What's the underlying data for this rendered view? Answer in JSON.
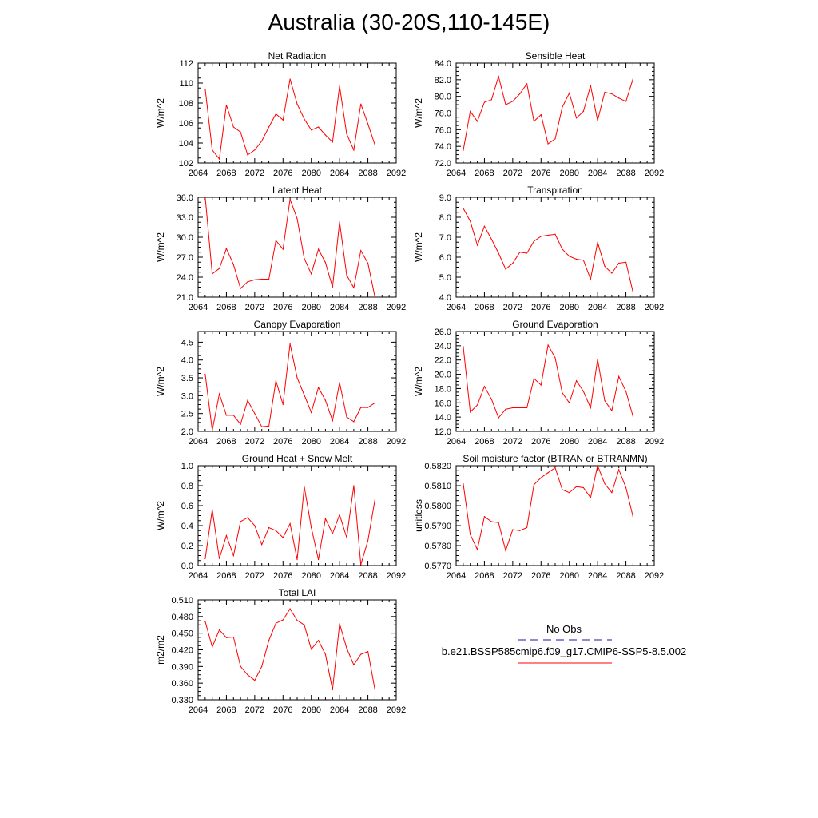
{
  "figure_title": "Australia (30-20S,110-145E)",
  "legend": {
    "entries": [
      {
        "label": "No Obs",
        "color": "#1a1aa0",
        "dash": "dashed"
      },
      {
        "label": "b.e21.BSSP585cmip6.f09_g17.CMIP6-SSP5-8.5.002",
        "color": "#ff0000",
        "dash": "solid"
      }
    ]
  },
  "chart_data": [
    {
      "type": "line",
      "title": "Net Radiation",
      "ylabel": "W/m^2",
      "xlabel": "",
      "xlim": [
        2064,
        2092
      ],
      "ylim": [
        102,
        112
      ],
      "xticks": [
        2064,
        2068,
        2072,
        2076,
        2080,
        2084,
        2088,
        2092
      ],
      "xtick_labels": [
        "2064",
        "2068",
        "2072",
        "2076",
        "2080",
        "2084",
        "2088",
        "2092"
      ],
      "yticks": [
        102,
        104,
        106,
        108,
        110,
        112
      ],
      "ytick_labels": [
        "102",
        "104",
        "106",
        "108",
        "110",
        "112"
      ],
      "series": [
        {
          "color": "#ff0000",
          "x": [
            2065,
            2066,
            2067,
            2068,
            2069,
            2070,
            2071,
            2072,
            2073,
            2074,
            2075,
            2076,
            2077,
            2078,
            2079,
            2080,
            2081,
            2082,
            2083,
            2084,
            2085,
            2086,
            2087,
            2088,
            2089
          ],
          "y": [
            109.4,
            103.3,
            102.4,
            107.8,
            105.6,
            105.1,
            102.8,
            103.3,
            104.2,
            105.6,
            106.9,
            106.3,
            110.4,
            107.9,
            106.4,
            105.3,
            105.6,
            104.8,
            104.1,
            109.7,
            104.9,
            103.3,
            107.9,
            105.9,
            103.8
          ]
        }
      ]
    },
    {
      "type": "line",
      "title": "Sensible Heat",
      "ylabel": "W/m^2",
      "xlabel": "",
      "xlim": [
        2064,
        2092
      ],
      "ylim": [
        72,
        84
      ],
      "xticks": [
        2064,
        2068,
        2072,
        2076,
        2080,
        2084,
        2088,
        2092
      ],
      "xtick_labels": [
        "2064",
        "2068",
        "2072",
        "2076",
        "2080",
        "2084",
        "2088",
        "2092"
      ],
      "yticks": [
        72,
        74,
        76,
        78,
        80,
        82,
        84
      ],
      "ytick_labels": [
        "72.0",
        "74.0",
        "76.0",
        "78.0",
        "80.0",
        "82.0",
        "84.0"
      ],
      "series": [
        {
          "color": "#ff0000",
          "x": [
            2065,
            2066,
            2067,
            2068,
            2069,
            2070,
            2071,
            2072,
            2073,
            2074,
            2075,
            2076,
            2077,
            2078,
            2079,
            2080,
            2081,
            2082,
            2083,
            2084,
            2085,
            2086,
            2087,
            2088,
            2089
          ],
          "y": [
            73.5,
            78.2,
            77.0,
            79.3,
            79.6,
            82.4,
            79.0,
            79.4,
            80.3,
            81.5,
            77.0,
            77.8,
            74.3,
            74.9,
            78.7,
            80.4,
            77.4,
            78.2,
            81.3,
            77.1,
            80.5,
            80.3,
            79.8,
            79.4,
            82.1
          ]
        }
      ]
    },
    {
      "type": "line",
      "title": "Latent Heat",
      "ylabel": "W/m^2",
      "xlabel": "",
      "xlim": [
        2064,
        2092
      ],
      "ylim": [
        21,
        36
      ],
      "xticks": [
        2064,
        2068,
        2072,
        2076,
        2080,
        2084,
        2088,
        2092
      ],
      "xtick_labels": [
        "2064",
        "2068",
        "2072",
        "2076",
        "2080",
        "2084",
        "2088",
        "2092"
      ],
      "yticks": [
        21,
        24,
        27,
        30,
        33,
        36
      ],
      "ytick_labels": [
        "21.0",
        "24.0",
        "27.0",
        "30.0",
        "33.0",
        "36.0"
      ],
      "series": [
        {
          "color": "#ff0000",
          "x": [
            2065,
            2066,
            2067,
            2068,
            2069,
            2070,
            2071,
            2072,
            2073,
            2074,
            2075,
            2076,
            2077,
            2078,
            2079,
            2080,
            2081,
            2082,
            2083,
            2084,
            2085,
            2086,
            2087,
            2088,
            2089
          ],
          "y": [
            36.0,
            24.5,
            25.3,
            28.3,
            25.9,
            22.3,
            23.3,
            23.6,
            23.7,
            23.7,
            29.5,
            28.2,
            35.7,
            32.8,
            26.8,
            24.5,
            28.2,
            26.2,
            22.5,
            32.3,
            24.3,
            22.4,
            28.0,
            26.1,
            21.0
          ]
        }
      ]
    },
    {
      "type": "line",
      "title": "Transpiration",
      "ylabel": "W/m^2",
      "xlabel": "",
      "xlim": [
        2064,
        2092
      ],
      "ylim": [
        4,
        9
      ],
      "xticks": [
        2064,
        2068,
        2072,
        2076,
        2080,
        2084,
        2088,
        2092
      ],
      "xtick_labels": [
        "2064",
        "2068",
        "2072",
        "2076",
        "2080",
        "2084",
        "2088",
        "2092"
      ],
      "yticks": [
        4,
        5,
        6,
        7,
        8,
        9
      ],
      "ytick_labels": [
        "4.0",
        "5.0",
        "6.0",
        "7.0",
        "8.0",
        "9.0"
      ],
      "series": [
        {
          "color": "#ff0000",
          "x": [
            2065,
            2066,
            2067,
            2068,
            2069,
            2070,
            2071,
            2072,
            2073,
            2074,
            2075,
            2076,
            2077,
            2078,
            2079,
            2080,
            2081,
            2082,
            2083,
            2084,
            2085,
            2086,
            2087,
            2088,
            2089
          ],
          "y": [
            8.45,
            7.8,
            6.6,
            7.55,
            6.9,
            6.2,
            5.4,
            5.7,
            6.25,
            6.2,
            6.8,
            7.05,
            7.1,
            7.15,
            6.4,
            6.05,
            5.9,
            5.85,
            4.9,
            6.75,
            5.55,
            5.2,
            5.7,
            5.75,
            4.25
          ]
        }
      ]
    },
    {
      "type": "line",
      "title": "Canopy Evaporation",
      "ylabel": "W/m^2",
      "xlabel": "",
      "xlim": [
        2064,
        2092
      ],
      "ylim": [
        2.0,
        4.8
      ],
      "xticks": [
        2064,
        2068,
        2072,
        2076,
        2080,
        2084,
        2088,
        2092
      ],
      "xtick_labels": [
        "2064",
        "2068",
        "2072",
        "2076",
        "2080",
        "2084",
        "2088",
        "2092"
      ],
      "yticks": [
        2.0,
        2.5,
        3.0,
        3.5,
        4.0,
        4.5
      ],
      "ytick_labels": [
        "2.0",
        "2.5",
        "3.0",
        "3.5",
        "4.0",
        "4.5"
      ],
      "series": [
        {
          "color": "#ff0000",
          "x": [
            2065,
            2066,
            2067,
            2068,
            2069,
            2070,
            2071,
            2072,
            2073,
            2074,
            2075,
            2076,
            2077,
            2078,
            2079,
            2080,
            2081,
            2082,
            2083,
            2084,
            2085,
            2086,
            2087,
            2088,
            2089
          ],
          "y": [
            3.6,
            2.03,
            3.05,
            2.45,
            2.45,
            2.2,
            2.87,
            2.5,
            2.13,
            2.15,
            3.42,
            2.75,
            4.45,
            3.5,
            3.02,
            2.53,
            3.23,
            2.87,
            2.3,
            3.37,
            2.4,
            2.27,
            2.67,
            2.67,
            2.8
          ]
        }
      ]
    },
    {
      "type": "line",
      "title": "Ground Evaporation",
      "ylabel": "W/m^2",
      "xlabel": "",
      "xlim": [
        2064,
        2092
      ],
      "ylim": [
        12,
        26
      ],
      "xticks": [
        2064,
        2068,
        2072,
        2076,
        2080,
        2084,
        2088,
        2092
      ],
      "xtick_labels": [
        "2064",
        "2068",
        "2072",
        "2076",
        "2080",
        "2084",
        "2088",
        "2092"
      ],
      "yticks": [
        12,
        14,
        16,
        18,
        20,
        22,
        24,
        26
      ],
      "ytick_labels": [
        "12.0",
        "14.0",
        "16.0",
        "18.0",
        "20.0",
        "22.0",
        "24.0",
        "26.0"
      ],
      "series": [
        {
          "color": "#ff0000",
          "x": [
            2065,
            2066,
            2067,
            2068,
            2069,
            2070,
            2071,
            2072,
            2073,
            2074,
            2075,
            2076,
            2077,
            2078,
            2079,
            2080,
            2081,
            2082,
            2083,
            2084,
            2085,
            2086,
            2087,
            2088,
            2089
          ],
          "y": [
            23.9,
            14.7,
            15.7,
            18.3,
            16.5,
            13.9,
            15.1,
            15.3,
            15.3,
            15.3,
            19.4,
            18.5,
            24.1,
            22.3,
            17.4,
            16.0,
            19.1,
            17.6,
            15.3,
            22.1,
            16.3,
            14.9,
            19.7,
            17.6,
            14.1
          ]
        }
      ]
    },
    {
      "type": "line",
      "title": "Ground Heat + Snow Melt",
      "ylabel": "W/m^2",
      "xlabel": "",
      "xlim": [
        2064,
        2092
      ],
      "ylim": [
        0.0,
        1.0
      ],
      "xticks": [
        2064,
        2068,
        2072,
        2076,
        2080,
        2084,
        2088,
        2092
      ],
      "xtick_labels": [
        "2064",
        "2068",
        "2072",
        "2076",
        "2080",
        "2084",
        "2088",
        "2092"
      ],
      "yticks": [
        0.0,
        0.2,
        0.4,
        0.6,
        0.8,
        1.0
      ],
      "ytick_labels": [
        "0.0",
        "0.2",
        "0.4",
        "0.6",
        "0.8",
        "1.0"
      ],
      "series": [
        {
          "color": "#ff0000",
          "x": [
            2065,
            2066,
            2067,
            2068,
            2069,
            2070,
            2071,
            2072,
            2073,
            2074,
            2075,
            2076,
            2077,
            2078,
            2079,
            2080,
            2081,
            2082,
            2083,
            2084,
            2085,
            2086,
            2087,
            2088,
            2089
          ],
          "y": [
            0.07,
            0.56,
            0.07,
            0.3,
            0.1,
            0.44,
            0.48,
            0.4,
            0.21,
            0.38,
            0.35,
            0.28,
            0.42,
            0.06,
            0.79,
            0.38,
            0.06,
            0.47,
            0.32,
            0.51,
            0.28,
            0.8,
            0.01,
            0.25,
            0.66
          ]
        }
      ]
    },
    {
      "type": "line",
      "title": "Soil moisture factor (BTRAN or BTRANMN)",
      "ylabel": "unitless",
      "xlabel": "",
      "xlim": [
        2064,
        2092
      ],
      "ylim": [
        0.577,
        0.582
      ],
      "xticks": [
        2064,
        2068,
        2072,
        2076,
        2080,
        2084,
        2088,
        2092
      ],
      "xtick_labels": [
        "2064",
        "2068",
        "2072",
        "2076",
        "2080",
        "2084",
        "2088",
        "2092"
      ],
      "yticks": [
        0.577,
        0.578,
        0.579,
        0.58,
        0.581,
        0.582
      ],
      "ytick_labels": [
        "0.5770",
        "0.5780",
        "0.5790",
        "0.5800",
        "0.5810",
        "0.5820"
      ],
      "series": [
        {
          "color": "#ff0000",
          "x": [
            2065,
            2066,
            2067,
            2068,
            2069,
            2070,
            2071,
            2072,
            2073,
            2074,
            2075,
            2076,
            2077,
            2078,
            2079,
            2080,
            2081,
            2082,
            2083,
            2084,
            2085,
            2086,
            2087,
            2088,
            2089
          ],
          "y": [
            0.5811,
            0.57855,
            0.5778,
            0.57945,
            0.5792,
            0.57915,
            0.57775,
            0.5788,
            0.57875,
            0.5789,
            0.58105,
            0.5814,
            0.58165,
            0.5819,
            0.5808,
            0.58065,
            0.58095,
            0.5809,
            0.5804,
            0.582,
            0.5811,
            0.58065,
            0.5818,
            0.5809,
            0.57945
          ]
        }
      ]
    },
    {
      "type": "line",
      "title": "Total LAI",
      "ylabel": "m2/m2",
      "xlabel": "",
      "xlim": [
        2064,
        2092
      ],
      "ylim": [
        0.33,
        0.51
      ],
      "xticks": [
        2064,
        2068,
        2072,
        2076,
        2080,
        2084,
        2088,
        2092
      ],
      "xtick_labels": [
        "2064",
        "2068",
        "2072",
        "2076",
        "2080",
        "2084",
        "2088",
        "2092"
      ],
      "yticks": [
        0.33,
        0.36,
        0.39,
        0.42,
        0.45,
        0.48,
        0.51
      ],
      "ytick_labels": [
        "0.330",
        "0.360",
        "0.390",
        "0.420",
        "0.450",
        "0.480",
        "0.510"
      ],
      "series": [
        {
          "color": "#ff0000",
          "x": [
            2065,
            2066,
            2067,
            2068,
            2069,
            2070,
            2071,
            2072,
            2073,
            2074,
            2075,
            2076,
            2077,
            2078,
            2079,
            2080,
            2081,
            2082,
            2083,
            2084,
            2085,
            2086,
            2087,
            2088,
            2089
          ],
          "y": [
            0.471,
            0.425,
            0.456,
            0.442,
            0.443,
            0.39,
            0.375,
            0.365,
            0.39,
            0.437,
            0.468,
            0.474,
            0.494,
            0.473,
            0.465,
            0.421,
            0.437,
            0.412,
            0.348,
            0.467,
            0.423,
            0.393,
            0.412,
            0.417,
            0.348
          ]
        }
      ]
    }
  ]
}
